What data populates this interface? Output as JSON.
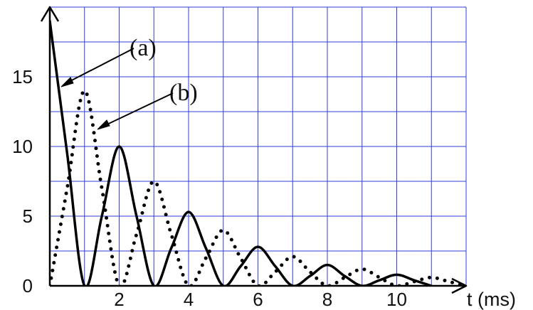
{
  "chart_data": {
    "type": "line",
    "title": "",
    "xlabel": "t (ms)",
    "ylabel": "",
    "grid": true,
    "grid_color": "#2f3fd9",
    "xlim": [
      0,
      12
    ],
    "ylim": [
      0,
      20
    ],
    "x_ticks": [
      2,
      4,
      6,
      8,
      10
    ],
    "y_ticks": [
      0,
      5,
      10,
      15
    ],
    "x_tick_labels": [
      "2",
      "4",
      "6",
      "8",
      "10"
    ],
    "y_tick_labels": [
      "0",
      "5",
      "10",
      "15"
    ],
    "annotations": [
      "(a)",
      "(b)"
    ],
    "series": [
      {
        "label": "(a)",
        "line_style": "solid",
        "color": "#000000",
        "x": [
          0,
          0.5,
          1,
          1.5,
          2,
          2.5,
          3,
          3.5,
          4,
          4.5,
          5,
          5.5,
          6,
          6.5,
          7,
          7.5,
          8,
          8.5,
          9,
          9.5,
          10,
          10.5,
          11
        ],
        "y": [
          19,
          9.5,
          0,
          5,
          10,
          5,
          0,
          2.7,
          5.3,
          2.7,
          0,
          1.4,
          2.8,
          1.4,
          0,
          0.7,
          1.5,
          0.7,
          0,
          0.4,
          0.8,
          0.4,
          0
        ]
      },
      {
        "label": "(b)",
        "line_style": "dotted",
        "color": "#000000",
        "x": [
          0,
          0.5,
          1,
          1.5,
          2,
          2.5,
          3,
          3.5,
          4,
          4.5,
          5,
          5.5,
          6,
          6.5,
          7,
          7.5,
          8,
          8.5,
          9,
          9.5,
          10,
          10.5,
          11,
          11.5,
          12
        ],
        "y": [
          0,
          7,
          14,
          7,
          0,
          3.7,
          7.5,
          3.7,
          0,
          2,
          4,
          2,
          0,
          1,
          2.1,
          1,
          0,
          0.6,
          1.2,
          0.6,
          0,
          0.3,
          0.6,
          0.3,
          0
        ]
      }
    ]
  }
}
